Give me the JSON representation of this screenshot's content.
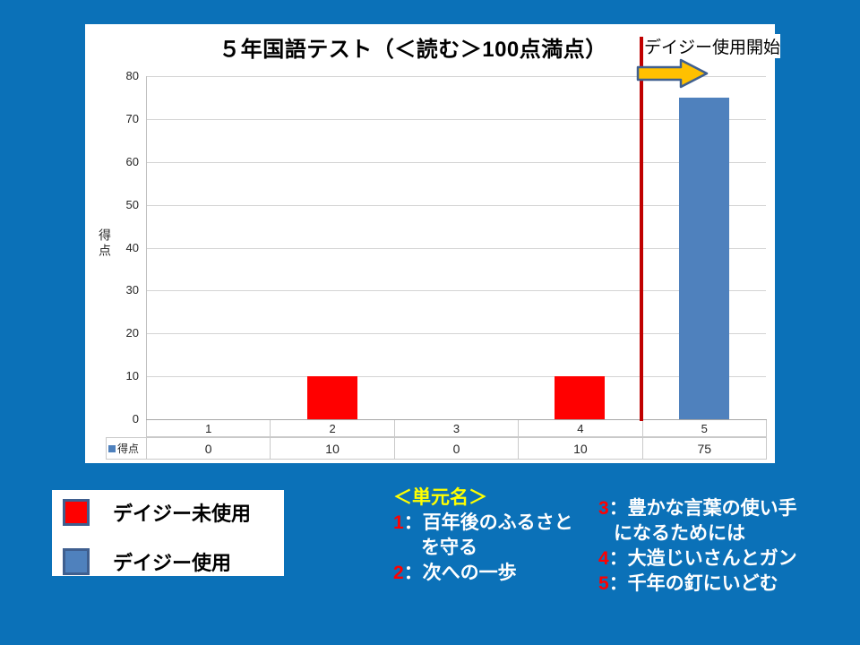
{
  "slide": {
    "background_color": "#0b71b8"
  },
  "chart_data": {
    "type": "bar",
    "title": "５年国語テスト（＜読む＞100点満点）",
    "categories": [
      "1",
      "2",
      "3",
      "4",
      "5"
    ],
    "series": [
      {
        "name": "得点",
        "values": [
          0,
          10,
          0,
          10,
          75
        ]
      }
    ],
    "bar_colors": [
      "#ff0000",
      "#ff0000",
      "#ff0000",
      "#ff0000",
      "#4f81bd"
    ],
    "xlabel": "",
    "ylabel": "得点",
    "ylim": [
      0,
      80
    ],
    "yticks": [
      0,
      10,
      20,
      30,
      40,
      50,
      60,
      70,
      80
    ],
    "grid": true,
    "legend_position": "outside bottom-left",
    "data_table": {
      "row_label": "得点",
      "values": [
        "0",
        "10",
        "0",
        "10",
        "75"
      ]
    },
    "annotation": {
      "label": "デイジー使用開始",
      "vline_between_categories": [
        "4",
        "5"
      ],
      "vline_color": "#c00000",
      "arrow_fill": "#ffc000",
      "arrow_outline": "#3f5f8f"
    }
  },
  "legend": {
    "items": [
      {
        "label": "デイジー未使用",
        "color": "#ff0000"
      },
      {
        "label": "デイジー使用",
        "color": "#4f81bd"
      }
    ]
  },
  "unit_names": {
    "heading": "＜単元名＞",
    "left_lines": [
      {
        "num": "1",
        "sep": "：",
        "text": "百年後のふるさと",
        "indent": false
      },
      {
        "num": "",
        "sep": "",
        "text": "を守る",
        "indent": true
      },
      {
        "num": "2",
        "sep": "：",
        "text": "次への一歩",
        "indent": false
      }
    ],
    "right_lines": [
      {
        "num": "3",
        "sep": "：",
        "text": "豊かな言葉の使い手",
        "indent": false
      },
      {
        "num": "",
        "sep": "",
        "text": "になるためには",
        "indent": true
      },
      {
        "num": "4",
        "sep": "：",
        "text": "大造じいさんとガン",
        "indent": false
      },
      {
        "num": "5",
        "sep": "：",
        "text": "千年の釘にいどむ",
        "indent": false
      }
    ]
  },
  "colors": {
    "accent_red": "#ff0000",
    "accent_blue": "#4f81bd",
    "vline_red": "#c00000",
    "arrow_yellow": "#ffc000",
    "shape_outline": "#3f5f8f",
    "heading_yellow": "#ffff00"
  }
}
